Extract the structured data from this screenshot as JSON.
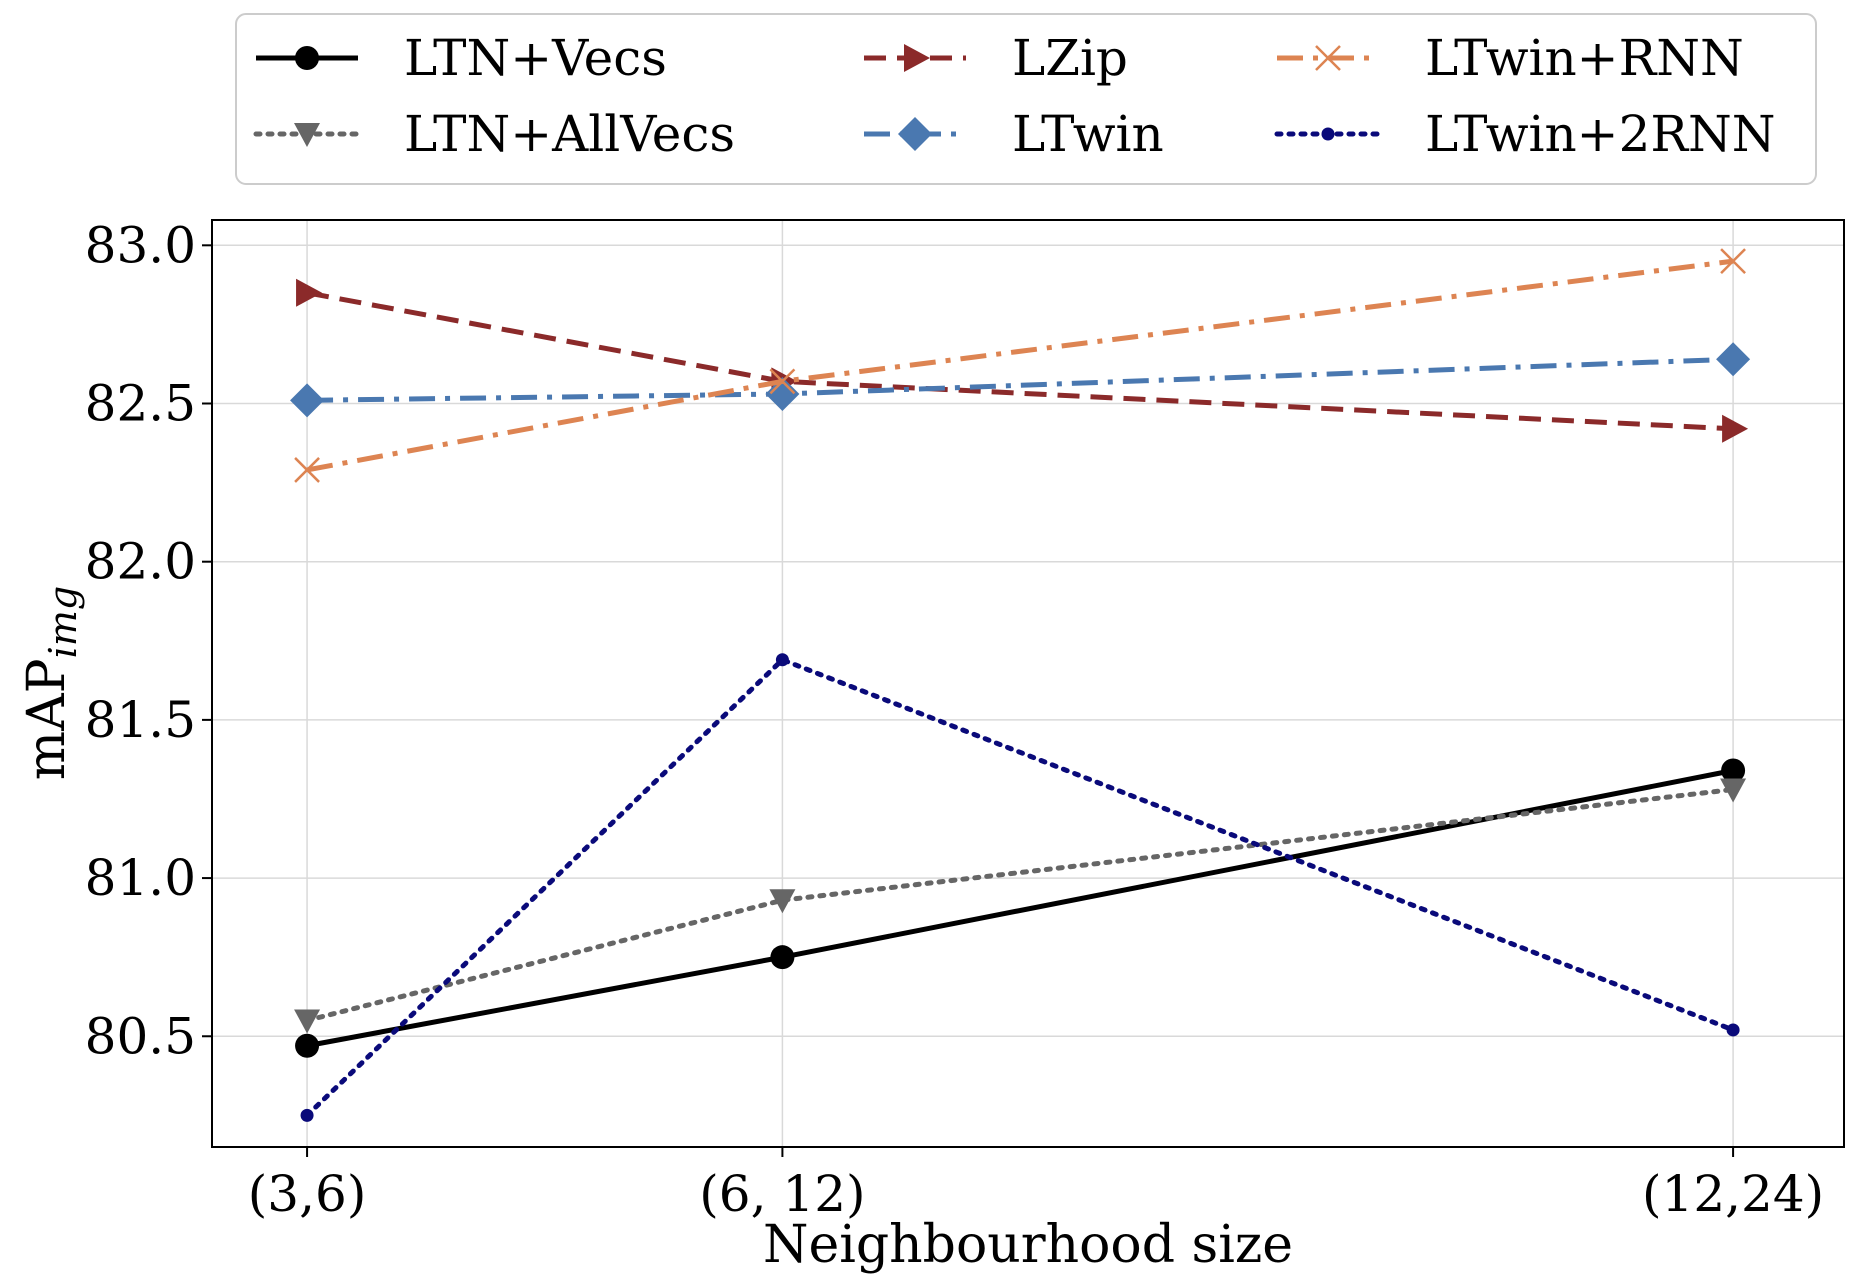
{
  "chart_data": {
    "type": "line",
    "title": "",
    "xlabel": "Neighbourhood size",
    "ylabel": "mAP",
    "ylabel_subscript": "img",
    "categories": [
      "(3,6)",
      "(6, 12)",
      "(12,24)"
    ],
    "x": [
      6,
      12,
      24
    ],
    "xlim": [
      4.8,
      25.4
    ],
    "ylim": [
      80.15,
      83.08
    ],
    "yticks": [
      "80.5",
      "81.0",
      "81.5",
      "82.0",
      "82.5",
      "83.0"
    ],
    "ytick_values": [
      80.5,
      81.0,
      81.5,
      82.0,
      82.5,
      83.0
    ],
    "grid": true,
    "legend_position": "top, outside, 3 columns",
    "series": [
      {
        "name": "LTN+Vecs",
        "values": [
          80.47,
          80.75,
          81.34
        ],
        "color": "#000000",
        "dash": "solid",
        "marker": "circle"
      },
      {
        "name": "LTN+AllVecs",
        "values": [
          80.55,
          80.93,
          81.28
        ],
        "color": "#666666",
        "dash": "dotted",
        "marker": "triangle-down"
      },
      {
        "name": "LZip",
        "values": [
          82.85,
          82.57,
          82.42
        ],
        "color": "#8b2a2a",
        "dash": "dashed",
        "marker": "triangle-right"
      },
      {
        "name": "LTwin",
        "values": [
          82.51,
          82.53,
          82.64
        ],
        "color": "#4a78b0",
        "dash": "dashdot",
        "marker": "diamond"
      },
      {
        "name": "LTwin+RNN",
        "values": [
          82.29,
          82.57,
          82.95
        ],
        "color": "#dd8452",
        "dash": "dashdot",
        "marker": "x"
      },
      {
        "name": "LTwin+2RNN",
        "values": [
          80.25,
          81.69,
          80.52
        ],
        "color": "#0a0a7a",
        "dash": "dotted",
        "marker": "small-circle"
      }
    ]
  }
}
